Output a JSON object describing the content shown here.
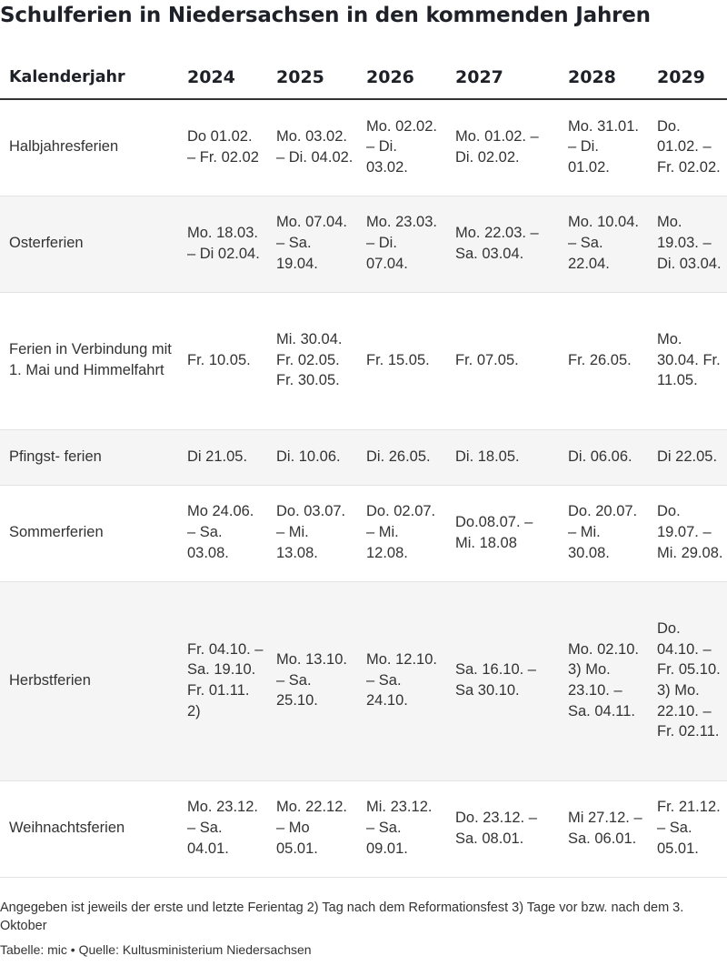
{
  "title": "Schulferien in Niedersachsen in den kommenden Jahren",
  "table": {
    "header_label": "Kalenderjahr",
    "years": [
      "2024",
      "2025",
      "2026",
      "2027",
      "2028",
      "2029"
    ],
    "rows": [
      {
        "label": "Halbjahresferien",
        "cells": [
          "Do 01.02. – Fr. 02.02",
          "Mo. 03.02. – Di. 04.02.",
          "Mo. 02.02. – Di. 03.02.",
          "Mo. 01.02. – Di. 02.02.",
          "Mo. 31.01. – Di. 01.02.",
          "Do. 01.02. – Fr. 02.02."
        ]
      },
      {
        "label": "Osterferien",
        "cells": [
          "Mo. 18.03. – Di 02.04.",
          "Mo. 07.04. – Sa. 19.04.",
          "Mo. 23.03. – Di. 07.04.",
          "Mo. 22.03. – Sa. 03.04.",
          "Mo. 10.04. – Sa. 22.04.",
          "Mo. 19.03. – Di. 03.04."
        ]
      },
      {
        "label": "Ferien in Verbindung mit 1. Mai und Himmel­fahrt",
        "cells": [
          "Fr. 10.05.",
          "Mi. 30.04. Fr. 02.05. Fr. 30.05.",
          "Fr. 15.05.",
          "Fr. 07.05.",
          "Fr. 26.05.",
          "Mo. 30.04. Fr. 11.05."
        ]
      },
      {
        "label": "Pfingst- ferien",
        "cells": [
          "Di 21.05.",
          "Di. 10.06.",
          "Di. 26.05.",
          "Di. 18.05.",
          "Di. 06.06.",
          "Di 22.05."
        ]
      },
      {
        "label": "Sommerferien",
        "cells": [
          "Mo 24.06. – Sa. 03.08.",
          "Do. 03.07. – Mi. 13.08.",
          "Do. 02.07. – Mi. 12.08.",
          "Do.08.07. – Mi. 18.08",
          "Do. 20.07. – Mi. 30.08.",
          "Do. 19.07. – Mi. 29.08."
        ]
      },
      {
        "label": "Herbstferien",
        "cells": [
          "Fr. 04.10. – Sa. 19.10. Fr. 01.11. 2)",
          "Mo. 13.10. – Sa. 25.10.",
          "Mo. 12.10. – Sa. 24.10.",
          "Sa. 16.10. – Sa 30.10.",
          "Mo. 02.10. 3) Mo. 23.10. – Sa. 04.11.",
          "Do. 04.10. – Fr. 05.10. 3) Mo. 22.10. – Fr. 02.11."
        ]
      },
      {
        "label": "Weihnachtsferien",
        "cells": [
          "Mo. 23.12. – Sa. 04.01.",
          "Mo. 22.12. – Mo 05.01.",
          "Mi. 23.12. – Sa. 09.01.",
          "Do. 23.12. – Sa. 08.01.",
          "Mi 27.12. – Sa. 06.01.",
          "Fr. 21.12. – Sa. 05.01."
        ]
      }
    ]
  },
  "footnote": "Angegeben ist jeweils der erste und letzte Ferientag 2) Tag nach dem Reformationsfest 3) Tage vor bzw. nach dem 3. Oktober",
  "source": "Tabelle: mic • Quelle: Kultusministerium Niedersachsen"
}
